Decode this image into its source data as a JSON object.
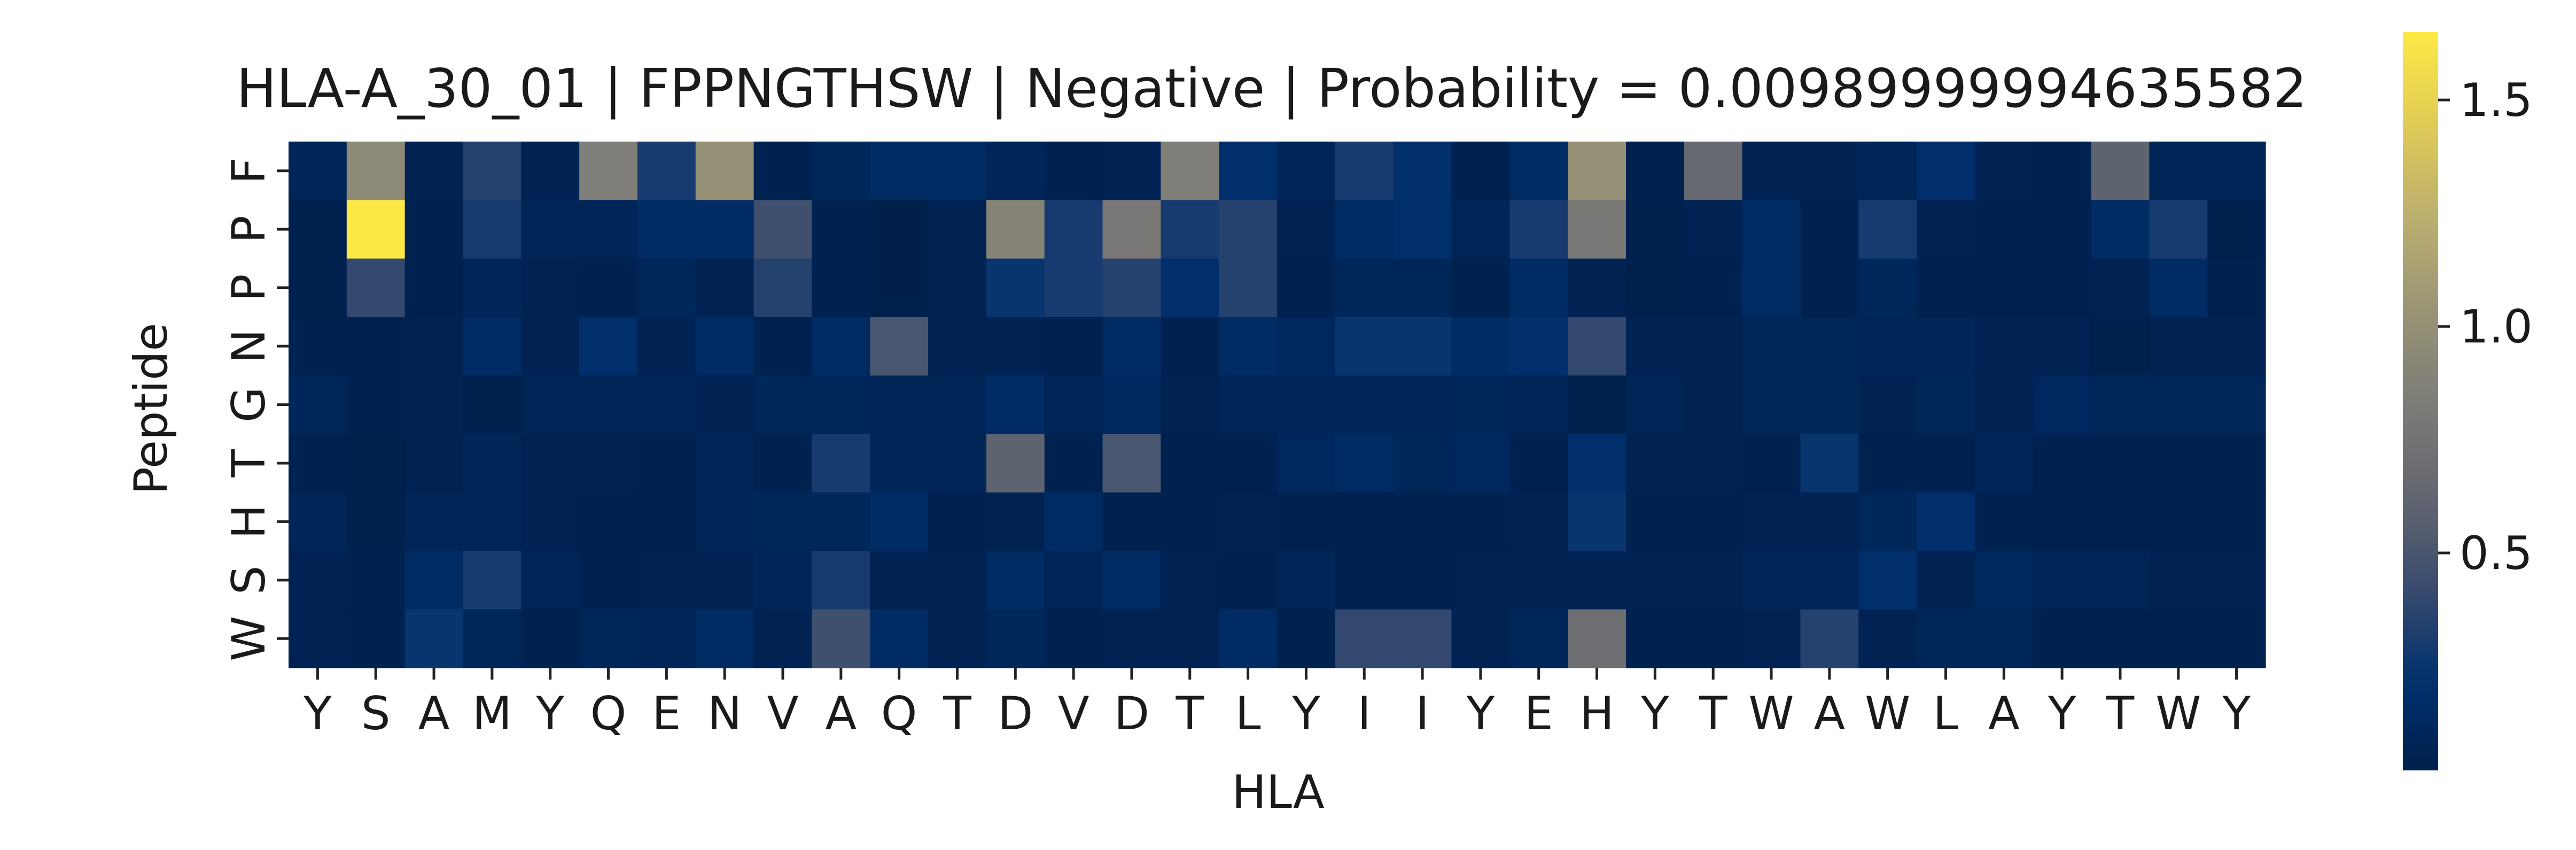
{
  "chart_data": {
    "type": "heatmap",
    "title": "HLA-A_30_01 | FPPNGTHSW | Negative | Probability = 0.00989999994635582",
    "xlabel": "HLA",
    "ylabel": "Peptide",
    "x_categories": [
      "Y",
      "S",
      "A",
      "M",
      "Y",
      "Q",
      "E",
      "N",
      "V",
      "A",
      "Q",
      "T",
      "D",
      "V",
      "D",
      "T",
      "L",
      "Y",
      "I",
      "I",
      "Y",
      "E",
      "H",
      "Y",
      "T",
      "W",
      "A",
      "W",
      "L",
      "A",
      "Y",
      "T",
      "W",
      "Y"
    ],
    "y_categories": [
      "F",
      "P",
      "P",
      "N",
      "G",
      "T",
      "H",
      "S",
      "W"
    ],
    "colormap": "cividis",
    "vmin": 0.02,
    "vmax": 1.65,
    "colorbar_ticks": [
      {
        "value": 0.5,
        "label": "0.5"
      },
      {
        "value": 1.0,
        "label": "1.0"
      },
      {
        "value": 1.5,
        "label": "1.5"
      }
    ],
    "values": [
      [
        0.08,
        0.95,
        0.06,
        0.35,
        0.06,
        0.85,
        0.3,
        1.0,
        0.04,
        0.1,
        0.15,
        0.15,
        0.08,
        0.04,
        0.06,
        0.85,
        0.2,
        0.08,
        0.3,
        0.2,
        0.05,
        0.15,
        1.0,
        0.04,
        0.65,
        0.06,
        0.06,
        0.08,
        0.2,
        0.06,
        0.05,
        0.6,
        0.08,
        0.08
      ],
      [
        0.03,
        1.65,
        0.05,
        0.3,
        0.08,
        0.08,
        0.15,
        0.15,
        0.45,
        0.05,
        0.02,
        0.06,
        0.9,
        0.3,
        0.8,
        0.3,
        0.35,
        0.06,
        0.15,
        0.2,
        0.08,
        0.3,
        0.8,
        0.03,
        0.06,
        0.15,
        0.04,
        0.3,
        0.06,
        0.05,
        0.04,
        0.15,
        0.3,
        0.03
      ],
      [
        0.03,
        0.4,
        0.05,
        0.08,
        0.06,
        0.05,
        0.1,
        0.06,
        0.35,
        0.05,
        0.02,
        0.06,
        0.25,
        0.3,
        0.35,
        0.2,
        0.35,
        0.05,
        0.1,
        0.1,
        0.05,
        0.15,
        0.06,
        0.03,
        0.05,
        0.15,
        0.05,
        0.1,
        0.05,
        0.05,
        0.04,
        0.06,
        0.15,
        0.04
      ],
      [
        0.05,
        0.04,
        0.06,
        0.15,
        0.06,
        0.2,
        0.06,
        0.15,
        0.04,
        0.15,
        0.5,
        0.06,
        0.06,
        0.04,
        0.15,
        0.05,
        0.15,
        0.12,
        0.25,
        0.25,
        0.15,
        0.2,
        0.4,
        0.06,
        0.06,
        0.1,
        0.1,
        0.08,
        0.08,
        0.06,
        0.06,
        0.03,
        0.06,
        0.06
      ],
      [
        0.1,
        0.05,
        0.06,
        0.03,
        0.08,
        0.08,
        0.08,
        0.06,
        0.1,
        0.1,
        0.08,
        0.08,
        0.15,
        0.08,
        0.12,
        0.06,
        0.08,
        0.08,
        0.08,
        0.08,
        0.1,
        0.08,
        0.03,
        0.08,
        0.06,
        0.1,
        0.1,
        0.06,
        0.1,
        0.06,
        0.12,
        0.1,
        0.1,
        0.1
      ],
      [
        0.05,
        0.03,
        0.06,
        0.08,
        0.06,
        0.06,
        0.05,
        0.08,
        0.05,
        0.3,
        0.08,
        0.08,
        0.6,
        0.04,
        0.5,
        0.05,
        0.05,
        0.12,
        0.15,
        0.1,
        0.12,
        0.05,
        0.2,
        0.06,
        0.06,
        0.05,
        0.25,
        0.05,
        0.05,
        0.08,
        0.05,
        0.04,
        0.05,
        0.05
      ],
      [
        0.08,
        0.03,
        0.08,
        0.08,
        0.06,
        0.05,
        0.05,
        0.08,
        0.1,
        0.1,
        0.15,
        0.05,
        0.06,
        0.15,
        0.05,
        0.04,
        0.06,
        0.05,
        0.04,
        0.04,
        0.05,
        0.06,
        0.25,
        0.04,
        0.04,
        0.06,
        0.06,
        0.1,
        0.2,
        0.05,
        0.04,
        0.04,
        0.05,
        0.05
      ],
      [
        0.06,
        0.04,
        0.15,
        0.3,
        0.08,
        0.04,
        0.06,
        0.06,
        0.08,
        0.3,
        0.06,
        0.06,
        0.15,
        0.08,
        0.15,
        0.06,
        0.05,
        0.08,
        0.04,
        0.04,
        0.06,
        0.06,
        0.06,
        0.06,
        0.06,
        0.08,
        0.08,
        0.2,
        0.06,
        0.12,
        0.08,
        0.08,
        0.06,
        0.06
      ],
      [
        0.06,
        0.05,
        0.25,
        0.1,
        0.05,
        0.1,
        0.08,
        0.15,
        0.06,
        0.45,
        0.15,
        0.06,
        0.1,
        0.04,
        0.06,
        0.06,
        0.15,
        0.05,
        0.4,
        0.4,
        0.06,
        0.1,
        0.7,
        0.04,
        0.05,
        0.06,
        0.35,
        0.06,
        0.1,
        0.1,
        0.04,
        0.04,
        0.04,
        0.05
      ]
    ]
  }
}
